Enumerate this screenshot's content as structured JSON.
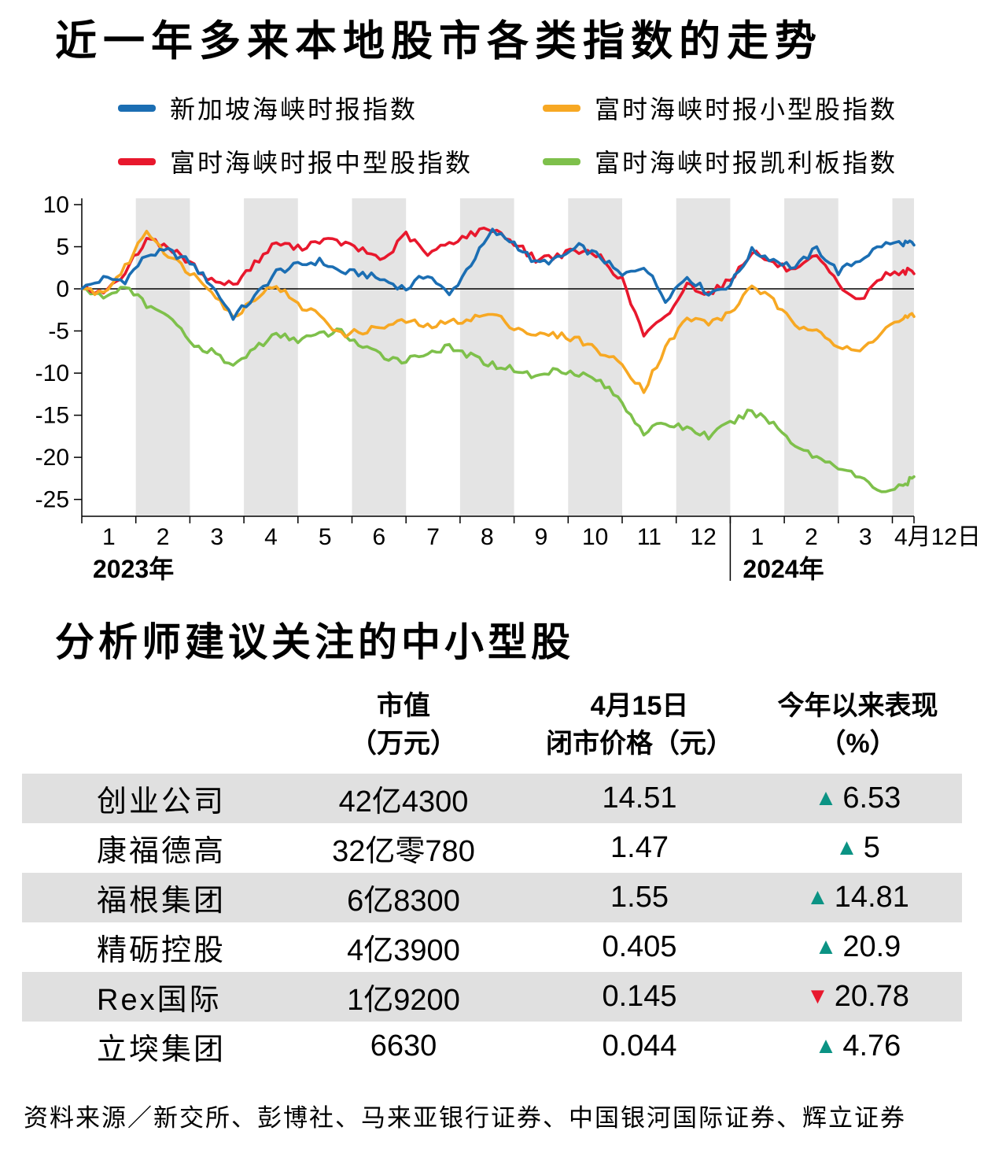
{
  "page": {
    "title": "近一年多来本地股市各类指数的走势"
  },
  "legend": {
    "items": [
      {
        "key": "sti",
        "label": "新加坡海峡时报指数",
        "color": "#1b6eb3"
      },
      {
        "key": "smallcap",
        "label": "富时海峡时报小型股指数",
        "color": "#f7a823"
      },
      {
        "key": "midcap",
        "label": "富时海峡时报中型股指数",
        "color": "#e8182d"
      },
      {
        "key": "catalist",
        "label": "富时海峡时报凯利板指数",
        "color": "#7ec04b"
      }
    ]
  },
  "chart_data": {
    "type": "line",
    "title": "近一年多来本地股市各类指数的走势",
    "ylabel": "",
    "ylim": [
      -27,
      10
    ],
    "yticks": [
      10,
      5,
      0,
      -5,
      -10,
      -15,
      -20,
      -25
    ],
    "grid": "alternating vertical month bands",
    "legend_position": "top",
    "x_unit": "months since 2023-01-01",
    "x": [
      0,
      0.4,
      0.8,
      1.2,
      1.6,
      2,
      2.4,
      2.8,
      3.2,
      3.6,
      4,
      4.4,
      4.8,
      5.2,
      5.6,
      6,
      6.4,
      6.8,
      7.2,
      7.6,
      8,
      8.4,
      8.8,
      9.2,
      9.6,
      10,
      10.4,
      10.8,
      11.2,
      11.6,
      12,
      12.4,
      12.8,
      13.2,
      13.6,
      14,
      14.4,
      14.8,
      15.2,
      15.4
    ],
    "x_months_2023": [
      "1",
      "2",
      "3",
      "4",
      "5",
      "6",
      "7",
      "8",
      "9",
      "10",
      "11",
      "12"
    ],
    "x_months_2024": [
      "1",
      "2",
      "3"
    ],
    "x_end_label": "4月12日",
    "year_labels": [
      "2023年",
      "2024年"
    ],
    "series": [
      {
        "key": "sti",
        "name": "新加坡海峡时报指数",
        "color": "#1b6eb3",
        "values": [
          0,
          1.2,
          1,
          4,
          4.5,
          3.2,
          0.5,
          -3.3,
          -1,
          2,
          2.8,
          3.3,
          2,
          1.8,
          1,
          0,
          1.8,
          -0.8,
          3,
          6.8,
          5.5,
          3,
          3.5,
          5,
          3.8,
          1.5,
          2.8,
          -1.2,
          1.5,
          -0.5,
          0.5,
          4.5,
          3.5,
          2.5,
          4.8,
          2,
          3.5,
          5.2,
          5.5,
          5.2
        ]
      },
      {
        "key": "smallcap",
        "name": "富时海峡时报小型股指数",
        "color": "#f7a823",
        "values": [
          0,
          -0.5,
          2.5,
          7,
          4,
          2,
          0,
          -3.5,
          -1,
          0.5,
          -2,
          -3,
          -5.5,
          -5,
          -4.5,
          -3.8,
          -4.5,
          -4,
          -3.5,
          -3,
          -4.5,
          -5.5,
          -5.5,
          -6,
          -7.5,
          -9,
          -12,
          -7,
          -3.5,
          -4,
          -3,
          0.5,
          -1.5,
          -4.5,
          -4.5,
          -7,
          -7.5,
          -5,
          -3.5,
          -3.3
        ]
      },
      {
        "key": "midcap",
        "name": "富时海峡时报中型股指数",
        "color": "#e8182d",
        "values": [
          0,
          -0.5,
          2,
          6,
          5,
          3,
          1,
          0.5,
          3,
          5.5,
          4.8,
          5.8,
          5.5,
          4.5,
          3.5,
          6.5,
          4,
          5.5,
          6.5,
          7.2,
          5.5,
          3.5,
          4,
          4.5,
          3.8,
          1,
          -5.5,
          -3.5,
          0.5,
          -0.5,
          1,
          4.5,
          3,
          2,
          3.8,
          0.5,
          -1.5,
          1.5,
          2.2,
          1.8
        ]
      },
      {
        "key": "catalist",
        "name": "富时海峡时报凯利板指数",
        "color": "#7ec04b",
        "values": [
          0,
          -1,
          0.5,
          -2,
          -3,
          -6.5,
          -7.5,
          -9.2,
          -7,
          -5.5,
          -6,
          -5.5,
          -5,
          -7,
          -8,
          -8.5,
          -7.5,
          -7,
          -8,
          -9,
          -9.5,
          -10.5,
          -9.5,
          -10,
          -11,
          -13.5,
          -17,
          -16,
          -16.5,
          -17.5,
          -16,
          -14.5,
          -16,
          -18.5,
          -20,
          -21,
          -22.5,
          -24,
          -23.5,
          -22.3
        ]
      }
    ]
  },
  "table": {
    "section_title": "分析师建议关注的中小型股",
    "arrow_up_glyph": "▲",
    "arrow_down_glyph": "▼",
    "colors": {
      "up": "#0b9384",
      "down": "#e8182d",
      "shade": "#e0e0e0"
    },
    "columns": [
      {
        "key": "name",
        "line1": "",
        "line2": ""
      },
      {
        "key": "cap",
        "line1": "市值",
        "line2": "（万元）"
      },
      {
        "key": "price",
        "line1": "4月15日",
        "line2": "闭市价格（元）"
      },
      {
        "key": "perf",
        "line1": "今年以来表现",
        "line2": "（%）"
      }
    ],
    "rows": [
      {
        "name": "创业公司",
        "cap": "42亿4300",
        "price": "14.51",
        "dir": "up",
        "change": "6.53"
      },
      {
        "name": "康福德高",
        "cap": "32亿零780",
        "price": "1.47",
        "dir": "up",
        "change": "5"
      },
      {
        "name": "福根集团",
        "cap": "6亿8300",
        "price": "1.55",
        "dir": "up",
        "change": "14.81"
      },
      {
        "name": "精砺控股",
        "cap": "4亿3900",
        "price": "0.405",
        "dir": "up",
        "change": "20.9"
      },
      {
        "name": "Rex国际",
        "cap": "1亿9200",
        "price": "0.145",
        "dir": "down",
        "change": "20.78"
      },
      {
        "name": "立堗集团",
        "cap": "6630",
        "price": "0.044",
        "dir": "up",
        "change": "4.76"
      }
    ]
  },
  "footer": {
    "source": "资料来源／新交所、彭博社、马来亚银行证券、中国银河国际证券、辉立证券"
  }
}
